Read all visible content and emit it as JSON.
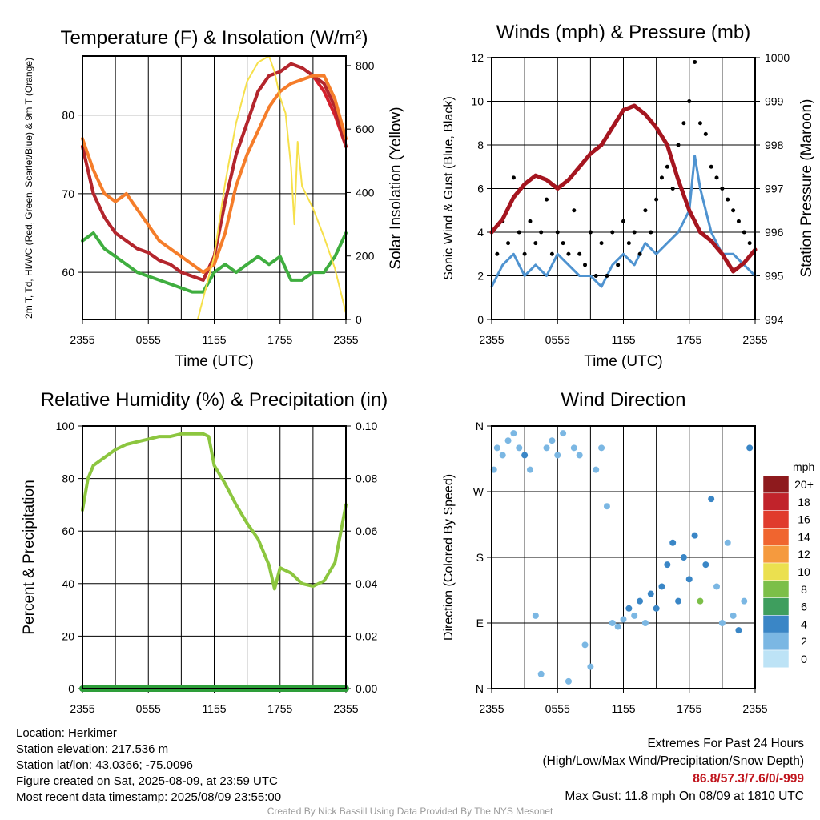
{
  "footer": {
    "location": "Location: Herkimer",
    "elevation": "Station elevation: 217.536 m",
    "latlon": "Station lat/lon: 43.0366; -75.0096",
    "created": "Figure created on Sat, 2025-08-09, at 23:59 UTC",
    "recent": "Most recent data timestamp: 2025/08/09 23:55:00",
    "extremes_title": "Extremes For Past 24 Hours",
    "extremes_subtitle": "(High/Low/Max Wind/Precipitation/Snow Depth)",
    "extremes_values": "86.8/57.3/7.6/0/-999",
    "max_gust": "Max Gust: 11.8 mph On 08/09 at 1810 UTC",
    "credit": "Created By Nick Bassill Using Data Provided By The NYS Mesonet"
  },
  "chart_data": [
    {
      "id": "temperature",
      "type": "line",
      "title": "Temperature (F) & Insolation (W/m²)",
      "xlabel": "Time (UTC)",
      "ylabel": "2m T, Td, HI/WC (Red, Green, Scarlet/Blue) & 9m T (Orange)",
      "ylabel_right": "Solar Insolation (Yellow)",
      "x_ticks": [
        "2355",
        "0555",
        "1155",
        "1755",
        "2355"
      ],
      "x_range_hours": [
        0,
        24
      ],
      "ylim": [
        54,
        87.5
      ],
      "yticks": [
        60,
        70,
        80
      ],
      "ylim_right": [
        0,
        830
      ],
      "yticks_right": [
        0,
        200,
        400,
        600,
        800
      ],
      "series": [
        {
          "axis": "left",
          "color": "#d4202c",
          "x": [
            0,
            1,
            2,
            3,
            4,
            5,
            6,
            7,
            8,
            9,
            10,
            11,
            12,
            13,
            14,
            15,
            16,
            17,
            18,
            19,
            20,
            21,
            22,
            23,
            24
          ],
          "values": [
            76,
            70,
            67,
            65,
            64,
            63,
            62.5,
            61.5,
            61,
            60,
            59.5,
            59,
            62,
            69,
            75,
            79,
            83,
            85,
            85.5,
            86.5,
            86,
            85,
            83,
            80,
            76
          ]
        },
        {
          "axis": "left",
          "color": "#b3262d",
          "x": [
            0,
            1,
            2,
            3,
            4,
            5,
            6,
            7,
            8,
            9,
            10,
            11,
            12,
            13,
            14,
            15,
            16,
            17,
            18,
            19,
            20,
            21,
            22,
            23,
            24
          ],
          "values": [
            76,
            70,
            67,
            65,
            64,
            63,
            62.5,
            61.5,
            61,
            60,
            59.5,
            59,
            62,
            69,
            75,
            79,
            83,
            85,
            85.5,
            86.5,
            86,
            85,
            84,
            81,
            76
          ]
        },
        {
          "axis": "left",
          "color": "#f57d2a",
          "x": [
            0,
            1,
            2,
            3,
            4,
            5,
            6,
            7,
            8,
            9,
            10,
            11,
            12,
            13,
            14,
            15,
            16,
            17,
            18,
            19,
            20,
            21,
            22,
            23,
            24
          ],
          "values": [
            77,
            73,
            70,
            69,
            70,
            68,
            66,
            64,
            63,
            62,
            61,
            60,
            61,
            65,
            71,
            75,
            78,
            81,
            83,
            84,
            84.5,
            85,
            85,
            82,
            77
          ]
        },
        {
          "axis": "left",
          "color": "#3fae3f",
          "x": [
            0,
            1,
            2,
            3,
            4,
            5,
            6,
            7,
            8,
            9,
            10,
            11,
            12,
            13,
            14,
            15,
            16,
            17,
            18,
            19,
            20,
            21,
            22,
            23,
            24
          ],
          "values": [
            64,
            65,
            63,
            62,
            61,
            60,
            59.5,
            59,
            58.5,
            58,
            57.5,
            57.5,
            60,
            61,
            60,
            61,
            62,
            61,
            62,
            59,
            59,
            60,
            60,
            62,
            65
          ]
        },
        {
          "axis": "right",
          "color": "#f6e04b",
          "x": [
            0,
            10.5,
            12,
            13,
            14,
            15,
            16,
            17,
            17.5,
            18,
            18.5,
            19,
            19.3,
            19.6,
            20,
            21,
            22,
            23,
            24
          ],
          "values": [
            0,
            0,
            200,
            430,
            620,
            750,
            810,
            830,
            780,
            700,
            650,
            480,
            300,
            560,
            420,
            350,
            260,
            160,
            20
          ]
        }
      ]
    },
    {
      "id": "winds",
      "type": "scatter",
      "title": "Winds (mph) & Pressure (mb)",
      "xlabel": "Time (UTC)",
      "ylabel": "Sonic Wind & Gust (Blue, Black)",
      "ylabel_right": "Station Pressure (Maroon)",
      "x_ticks": [
        "2355",
        "0555",
        "1155",
        "1755",
        "2355"
      ],
      "x_range_hours": [
        0,
        24
      ],
      "ylim": [
        0,
        12
      ],
      "yticks": [
        0,
        2,
        4,
        6,
        8,
        10,
        12
      ],
      "ylim_right": [
        994,
        1000
      ],
      "yticks_right": [
        994,
        995,
        996,
        997,
        998,
        999,
        1000
      ],
      "series": [
        {
          "axis": "left",
          "color": "#4f93d0",
          "kind": "line",
          "x": [
            0,
            1,
            2,
            3,
            4,
            5,
            6,
            7,
            8,
            9,
            10,
            11,
            12,
            13,
            14,
            15,
            16,
            17,
            18,
            18.5,
            19,
            20,
            21,
            22,
            23,
            24
          ],
          "values": [
            1.5,
            2.5,
            3,
            2,
            2.5,
            2,
            3,
            2.5,
            2,
            2,
            1.5,
            2.5,
            3,
            2.5,
            3.5,
            3,
            3.5,
            4,
            5,
            7.5,
            6,
            4,
            3,
            3,
            2.5,
            2
          ]
        },
        {
          "axis": "left",
          "color": "#000000",
          "kind": "points",
          "x": [
            0.5,
            1,
            1.5,
            2,
            2.5,
            3,
            3.5,
            4,
            4.5,
            5,
            5.5,
            6,
            6.5,
            7,
            7.5,
            8,
            8.5,
            9,
            9.5,
            10,
            10.5,
            11,
            11.5,
            12,
            12.5,
            13,
            13.5,
            14,
            14.5,
            15,
            15.5,
            16,
            16.5,
            17,
            17.5,
            18,
            18.5,
            19,
            19.5,
            20,
            20.5,
            21,
            21.5,
            22,
            22.5,
            23,
            23.5
          ],
          "values": [
            3,
            4.5,
            3.5,
            6.5,
            4,
            3,
            4.5,
            3.5,
            4,
            5.5,
            3,
            4,
            3.5,
            3,
            5,
            3,
            2.5,
            4,
            2,
            3.5,
            2,
            4,
            2.5,
            4.5,
            3.5,
            4,
            3,
            5,
            4,
            5.5,
            6.5,
            7,
            6,
            8,
            9,
            10,
            11.8,
            9,
            8.5,
            7,
            6.5,
            6,
            5.5,
            5,
            4.5,
            4,
            3.5
          ]
        },
        {
          "axis": "right",
          "color": "#a5151f",
          "kind": "line",
          "x": [
            0,
            1,
            2,
            3,
            4,
            5,
            6,
            7,
            8,
            9,
            10,
            11,
            12,
            13,
            14,
            15,
            16,
            17,
            18,
            19,
            20,
            21,
            22,
            23,
            24
          ],
          "values": [
            996,
            996.3,
            996.8,
            997.1,
            997.3,
            997.2,
            997.0,
            997.2,
            997.5,
            997.8,
            998.0,
            998.4,
            998.8,
            998.9,
            998.7,
            998.4,
            998.0,
            997.2,
            996.5,
            996.0,
            995.8,
            995.5,
            995.1,
            995.3,
            995.6
          ]
        }
      ]
    },
    {
      "id": "humidity",
      "type": "line",
      "title": "Relative Humidity (%) & Precipitation (in)",
      "xlabel": "",
      "ylabel": "Percent & Precipitation",
      "x_ticks": [
        "2355",
        "0555",
        "1155",
        "1755",
        "2355"
      ],
      "x_range_hours": [
        0,
        24
      ],
      "ylim": [
        0,
        100
      ],
      "yticks": [
        0,
        20,
        40,
        60,
        80,
        100
      ],
      "ylim_right": [
        0,
        0.1
      ],
      "yticks_right": [
        "0.00",
        "0.02",
        "0.04",
        "0.06",
        "0.08",
        "0.10"
      ],
      "series": [
        {
          "axis": "left",
          "color": "#8cc63f",
          "x": [
            0,
            0.5,
            1,
            2,
            3,
            4,
            5,
            6,
            7,
            8,
            9,
            10,
            11,
            11.5,
            12,
            13,
            14,
            15,
            16,
            17,
            17.5,
            18,
            19,
            20,
            21,
            22,
            23,
            24
          ],
          "values": [
            68,
            80,
            85,
            88,
            91,
            93,
            94,
            95,
            96,
            96,
            97,
            97,
            97,
            96,
            85,
            78,
            70,
            63,
            57,
            47,
            38,
            46,
            44,
            40,
            39,
            41,
            48,
            70
          ]
        },
        {
          "axis": "left",
          "color": "#2e9e3a",
          "x": [
            0,
            24
          ],
          "values": [
            0,
            0
          ]
        }
      ]
    },
    {
      "id": "direction",
      "type": "scatter",
      "title": "Wind Direction",
      "xlabel": "",
      "ylabel": "Direction (Colored By Speed)",
      "x_ticks": [
        "2355",
        "0555",
        "1155",
        "1755",
        "2355"
      ],
      "x_range_hours": [
        0,
        24
      ],
      "y_ticks_labels": [
        "N",
        "E",
        "S",
        "W",
        "N"
      ],
      "ylim": [
        0,
        360
      ],
      "legend": {
        "title": "mph",
        "labels": [
          "20+",
          "18",
          "16",
          "14",
          "12",
          "10",
          "8",
          "6",
          "4",
          "2",
          "0"
        ],
        "colors": [
          "#8e1a1d",
          "#c1232b",
          "#e03b2d",
          "#f0652f",
          "#f59a3e",
          "#ebe04f",
          "#7cbf48",
          "#3e9e5e",
          "#3a86c6",
          "#7bb7e3",
          "#bde3f6"
        ]
      },
      "points": [
        [
          0.2,
          300,
          2
        ],
        [
          0.5,
          330,
          1
        ],
        [
          1,
          320,
          2
        ],
        [
          1.5,
          340,
          2
        ],
        [
          2,
          350,
          1
        ],
        [
          2.5,
          330,
          2
        ],
        [
          3,
          320,
          3
        ],
        [
          3.5,
          300,
          2
        ],
        [
          4,
          100,
          2
        ],
        [
          4.5,
          20,
          2
        ],
        [
          5,
          330,
          2
        ],
        [
          5.5,
          340,
          1
        ],
        [
          6,
          320,
          2
        ],
        [
          6.5,
          350,
          1
        ],
        [
          7,
          10,
          2
        ],
        [
          7.5,
          330,
          2
        ],
        [
          8,
          320,
          1
        ],
        [
          8.5,
          60,
          2
        ],
        [
          9,
          30,
          2
        ],
        [
          9.5,
          300,
          2
        ],
        [
          10,
          330,
          1
        ],
        [
          10.5,
          250,
          1
        ],
        [
          11,
          90,
          2
        ],
        [
          11.5,
          85,
          2
        ],
        [
          12,
          95,
          2
        ],
        [
          12.5,
          110,
          3
        ],
        [
          13,
          100,
          2
        ],
        [
          13.5,
          120,
          3
        ],
        [
          14,
          90,
          2
        ],
        [
          14.5,
          130,
          3
        ],
        [
          15,
          110,
          3
        ],
        [
          15.5,
          140,
          4
        ],
        [
          16,
          170,
          3
        ],
        [
          16.5,
          200,
          4
        ],
        [
          17,
          120,
          3
        ],
        [
          17.5,
          180,
          3
        ],
        [
          18,
          150,
          4
        ],
        [
          18.5,
          210,
          3
        ],
        [
          19,
          120,
          7
        ],
        [
          19.5,
          170,
          3
        ],
        [
          20,
          260,
          4
        ],
        [
          20.5,
          140,
          2
        ],
        [
          21,
          90,
          2
        ],
        [
          21.5,
          200,
          2
        ],
        [
          22,
          100,
          2
        ],
        [
          22.5,
          80,
          3
        ],
        [
          23,
          120,
          2
        ],
        [
          23.5,
          330,
          3
        ]
      ]
    }
  ]
}
